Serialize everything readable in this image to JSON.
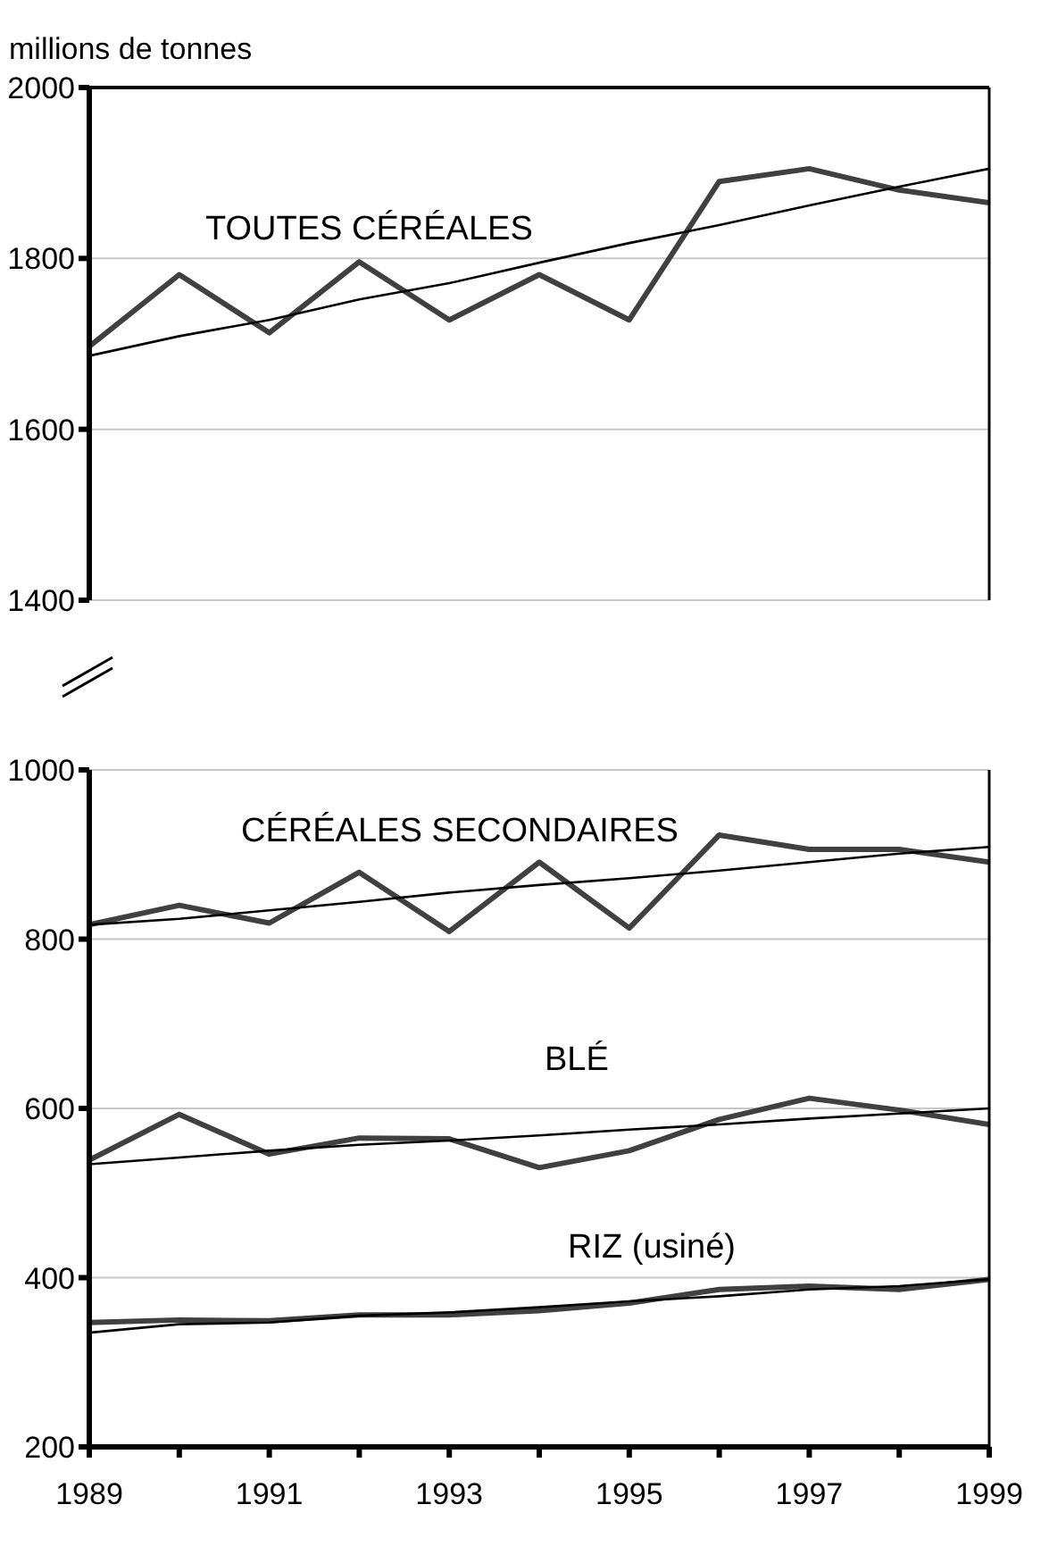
{
  "chart_data": [
    {
      "type": "line",
      "ylabel": "millions de tonnes",
      "x": [
        1989,
        1990,
        1991,
        1992,
        1993,
        1994,
        1995,
        1996,
        1997,
        1998,
        1999
      ],
      "xlim": [
        1989,
        1999
      ],
      "ylim": [
        1400,
        2000
      ],
      "yticks": [
        1400,
        1600,
        1800,
        2000
      ],
      "grid": "y",
      "tick_labels": "y",
      "marker": "none",
      "line_style": "solid",
      "series": [
        {
          "name": "TOUTES CÉRÉALES",
          "color": "#404040",
          "values": [
            1697,
            1781,
            1713,
            1796,
            1728,
            1781,
            1728,
            1890,
            1905,
            1880,
            1865
          ]
        },
        {
          "color": "#000000",
          "values": [
            1686,
            1709,
            1728,
            1752,
            1771,
            1795,
            1818,
            1839,
            1862,
            1884,
            1905
          ]
        }
      ]
    },
    {
      "type": "line",
      "x": [
        1989,
        1990,
        1991,
        1992,
        1993,
        1994,
        1995,
        1996,
        1997,
        1998,
        1999
      ],
      "xlim": [
        1989,
        1999
      ],
      "xticks": [
        1989,
        {
          "value": 1990,
          "label": null
        },
        1991,
        {
          "value": 1992,
          "label": null
        },
        1993,
        {
          "value": 1994,
          "label": null
        },
        1995,
        {
          "value": 1996,
          "label": null
        },
        1997,
        {
          "value": 1998,
          "label": null
        },
        1999
      ],
      "ylim": [
        200,
        1000
      ],
      "yticks": [
        200,
        400,
        600,
        800,
        1000
      ],
      "grid": "y",
      "marker": "none",
      "line_style": "solid",
      "series": [
        {
          "name": "CÉRÉALES SECONDAIRES",
          "color": "#404040",
          "values": [
            817,
            840,
            819,
            879,
            809,
            891,
            813,
            923,
            906,
            906,
            891
          ]
        },
        {
          "color": "#000000",
          "values": [
            817,
            824,
            834,
            844,
            855,
            864,
            872,
            881,
            891,
            901,
            909
          ]
        },
        {
          "name": "BLÉ",
          "color": "#404040",
          "values": [
            539,
            593,
            546,
            565,
            564,
            530,
            550,
            587,
            612,
            598,
            581
          ]
        },
        {
          "color": "#000000",
          "values": [
            534,
            542,
            550,
            557,
            562,
            568,
            575,
            581,
            588,
            594,
            600
          ]
        },
        {
          "name": "RIZ (usiné)",
          "color": "#404040",
          "values": [
            347,
            350,
            349,
            356,
            356,
            361,
            370,
            386,
            390,
            386,
            398
          ]
        },
        {
          "color": "#000000",
          "values": [
            335,
            345,
            347,
            355,
            359,
            365,
            372,
            378,
            386,
            390,
            398
          ]
        }
      ]
    }
  ]
}
